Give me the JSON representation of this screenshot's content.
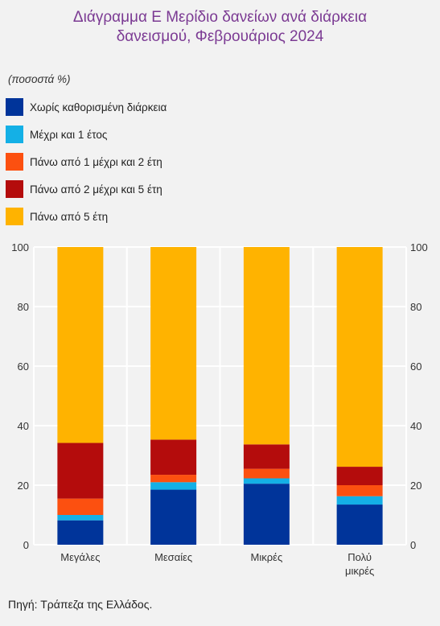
{
  "title_line1": "Διάγραμμα Ε Μερίδιο δανείων ανά διάρκεια",
  "title_line2": "δανεισμού, Φεβρουάριος 2024",
  "unit_label": "(ποσοστά %)",
  "source": "Πηγή: Τράπεζα της Ελλάδος.",
  "chart_data": {
    "type": "bar",
    "stacked": true,
    "categories": [
      "Μεγάλες",
      "Μεσαίες",
      "Μικρές",
      "Πολύ μικρές"
    ],
    "category_lines": [
      [
        "Μεγάλες"
      ],
      [
        "Μεσαίες"
      ],
      [
        "Μικρές"
      ],
      [
        "Πολύ",
        "μικρές"
      ]
    ],
    "ylim": [
      0,
      100
    ],
    "yticks": [
      0,
      20,
      40,
      60,
      80,
      100
    ],
    "grid": true,
    "legend_position": "top",
    "series": [
      {
        "name": "Χωρίς καθορισμένη διάρκεια",
        "color": "#00349a",
        "values": [
          8.2,
          18.5,
          20.5,
          13.5
        ]
      },
      {
        "name": "Μέχρι και 1 έτος",
        "color": "#14b0e6",
        "values": [
          1.8,
          2.5,
          1.8,
          2.8
        ]
      },
      {
        "name": "Πάνω από 1 μέχρι και 2 έτη",
        "color": "#fc5010",
        "values": [
          5.5,
          2.5,
          3.2,
          3.7
        ]
      },
      {
        "name": "Πάνω από 2 μέχρι και 5 έτη",
        "color": "#b40c0c",
        "values": [
          18.7,
          11.8,
          8.2,
          6.2
        ]
      },
      {
        "name": "Πάνω από 5 έτη",
        "color": "#ffb300",
        "values": [
          65.8,
          64.7,
          66.3,
          73.8
        ]
      }
    ]
  }
}
